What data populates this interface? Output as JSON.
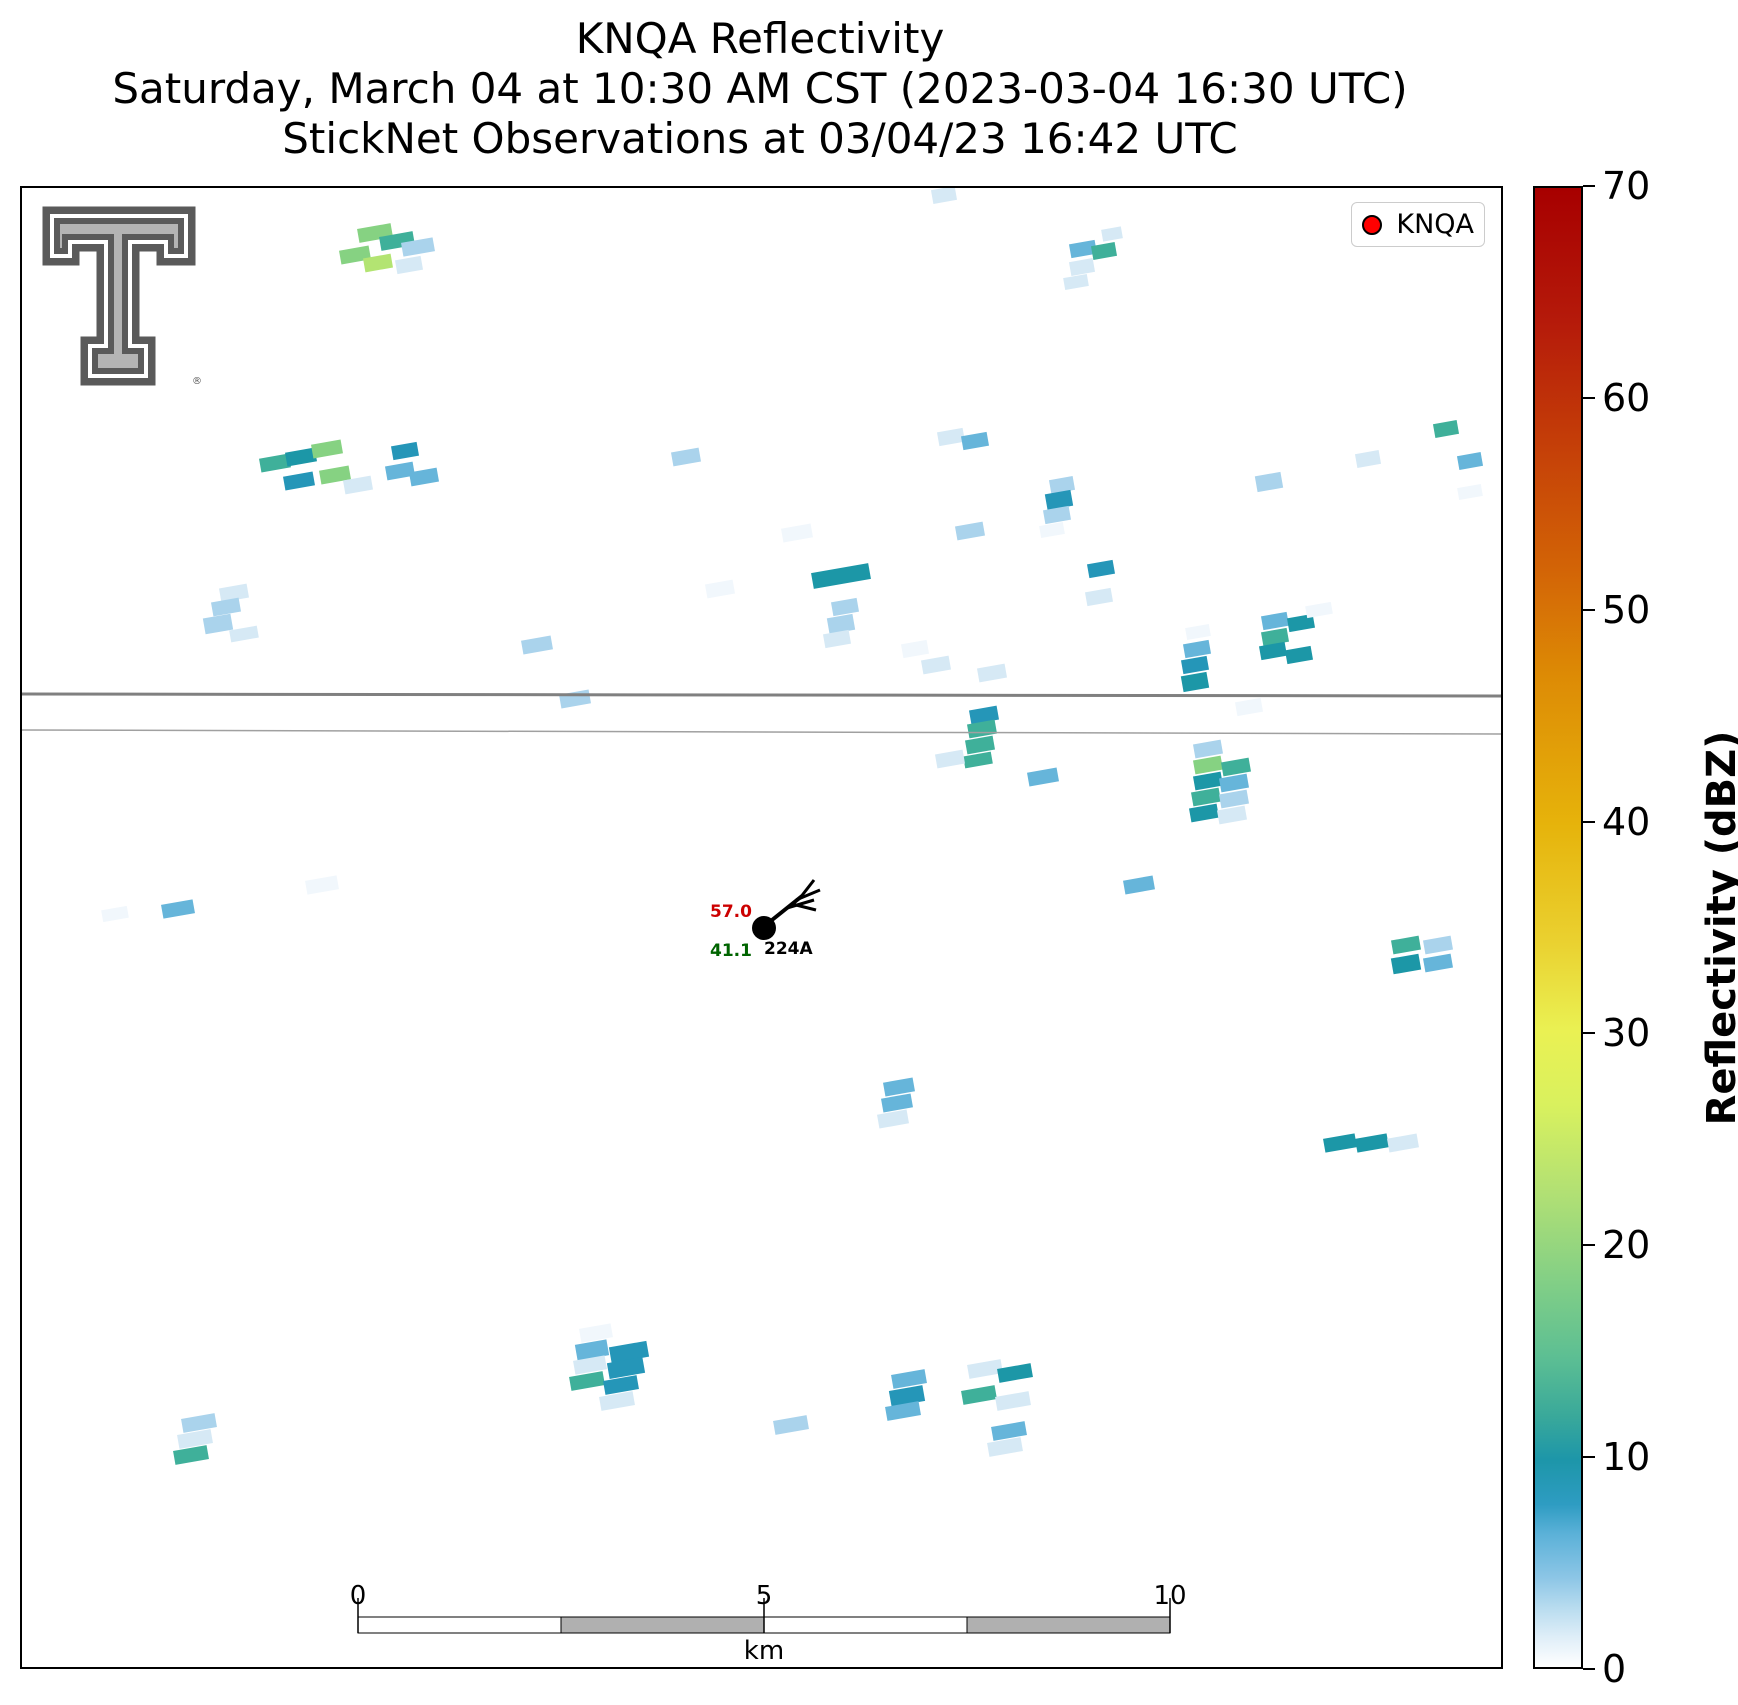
{
  "title": {
    "line1": "KNQA Reflectivity",
    "line2": "Saturday, March 04 at 10:30 AM CST (2023-03-04 16:30 UTC)",
    "line3": "StickNet Observations at 03/04/23 16:42 UTC"
  },
  "map": {
    "legend_label": "KNQA",
    "legend_marker_color": "#ff0000",
    "logo": "texas-tech-double-t-logo",
    "station": {
      "id": "224A",
      "temperature": "57.0",
      "dewpoint": "41.1",
      "temperature_color": "#cc0000",
      "dewpoint_color": "#006400",
      "wind_barb_direction": "southwest"
    },
    "scale_bar": {
      "ticks": [
        "0",
        "5",
        "10"
      ],
      "unit": "km"
    }
  },
  "colorbar": {
    "label": "Reflectivity (dBZ)",
    "ticks": [
      "0",
      "10",
      "20",
      "30",
      "40",
      "50",
      "60",
      "70"
    ],
    "min": 0,
    "max": 70
  }
}
